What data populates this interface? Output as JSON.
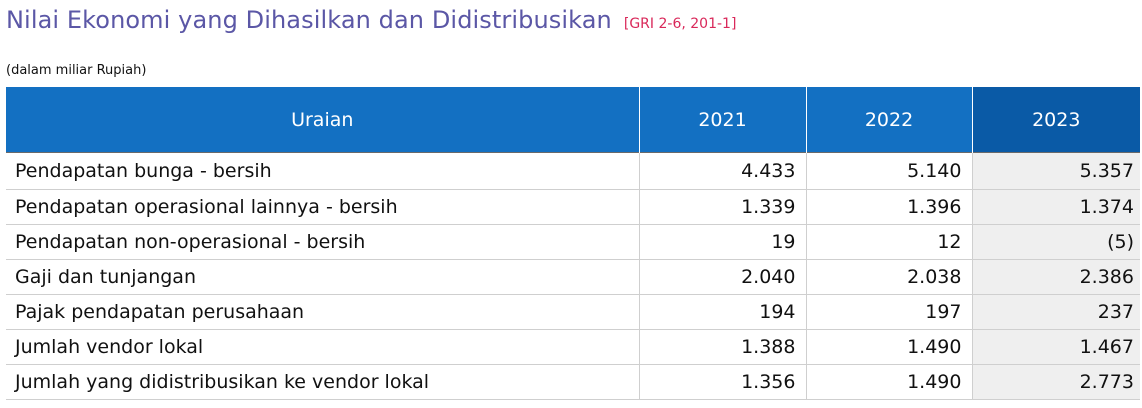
{
  "header": {
    "title": "Nilai Ekonomi yang Dihasilkan dan Didistribusikan",
    "gri_reference": "[GRI 2-6, 201-1]",
    "unit_note": "(dalam miliar Rupiah)"
  },
  "table": {
    "columns": [
      "Uraian",
      "2021",
      "2022",
      "2023"
    ],
    "rows": [
      {
        "label": "Pendapatan bunga - bersih",
        "values": [
          "4.433",
          "5.140",
          "5.357"
        ]
      },
      {
        "label": "Pendapatan operasional lainnya - bersih",
        "values": [
          "1.339",
          "1.396",
          "1.374"
        ]
      },
      {
        "label": "Pendapatan non-operasional - bersih",
        "values": [
          "19",
          "12",
          "(5)"
        ]
      },
      {
        "label": "Gaji dan tunjangan",
        "values": [
          "2.040",
          "2.038",
          "2.386"
        ]
      },
      {
        "label": "Pajak pendapatan perusahaan",
        "values": [
          "194",
          "197",
          "237"
        ]
      },
      {
        "label": "Jumlah vendor lokal",
        "values": [
          "1.388",
          "1.490",
          "1.467"
        ]
      },
      {
        "label": "Jumlah yang didistribusikan ke vendor lokal",
        "values": [
          "1.356",
          "1.490",
          "2.773"
        ]
      }
    ]
  },
  "colors": {
    "title": "#5b57a6",
    "gri_reference": "#d9285a",
    "header_bg": "#1370c2",
    "header_highlight_bg": "#0a5aa6",
    "highlight_column_bg": "#efefef"
  }
}
